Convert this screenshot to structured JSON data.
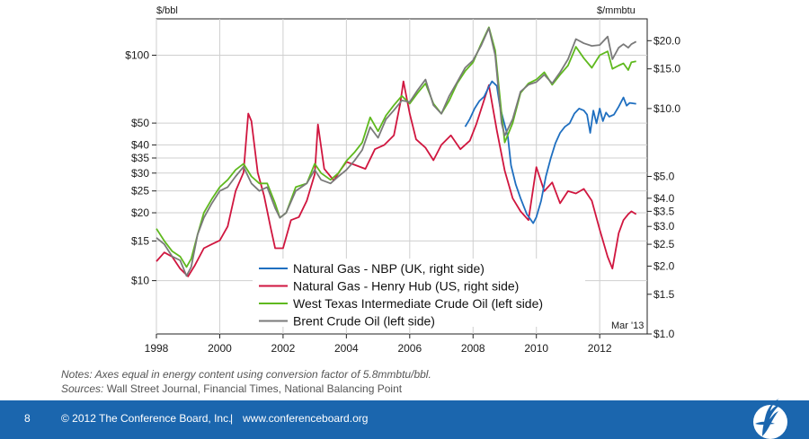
{
  "chart_data": {
    "type": "line",
    "title": "",
    "left_axis_unit": "$/bbl",
    "right_axis_unit": "$/mmbtu",
    "x_ticks": [
      "1998",
      "2000",
      "2002",
      "2004",
      "2006",
      "2008",
      "2010",
      "2012"
    ],
    "xlim": [
      1998,
      2013.5
    ],
    "left_scale": "log",
    "left_ylim": [
      5.8,
      145
    ],
    "left_ticks": [
      {
        "v": 100,
        "label": "$100"
      },
      {
        "v": 50,
        "label": "$50"
      },
      {
        "v": 40,
        "label": "$40"
      },
      {
        "v": 35,
        "label": "$35"
      },
      {
        "v": 30,
        "label": "$30"
      },
      {
        "v": 25,
        "label": "$25"
      },
      {
        "v": 20,
        "label": "$20"
      },
      {
        "v": 15,
        "label": "$15"
      },
      {
        "v": 10,
        "label": "$10"
      }
    ],
    "right_scale": "log",
    "right_ylim": [
      1.0,
      25.0
    ],
    "right_ticks": [
      {
        "v": 20,
        "label": "$20.0"
      },
      {
        "v": 15,
        "label": "$15.0"
      },
      {
        "v": 10,
        "label": "$10.0"
      },
      {
        "v": 5,
        "label": "$5.0"
      },
      {
        "v": 4,
        "label": "$4.0"
      },
      {
        "v": 3.5,
        "label": "$3.5"
      },
      {
        "v": 3,
        "label": "$3.0"
      },
      {
        "v": 2.5,
        "label": "$2.5"
      },
      {
        "v": 2,
        "label": "$2.0"
      },
      {
        "v": 1.5,
        "label": "$1.5"
      },
      {
        "v": 1,
        "label": "$1.0"
      }
    ],
    "date_label": "Mar '13",
    "grid": true,
    "legend_position": "bottom-center",
    "series": [
      {
        "name": "Natural Gas - NBP (UK, right side)",
        "axis": "right",
        "color": "#1f6fc0",
        "points": [
          [
            2007.75,
            8.3
          ],
          [
            2007.9,
            9.0
          ],
          [
            2008.05,
            10.0
          ],
          [
            2008.2,
            10.8
          ],
          [
            2008.35,
            11.3
          ],
          [
            2008.5,
            12.5
          ],
          [
            2008.6,
            13.2
          ],
          [
            2008.75,
            12.6
          ],
          [
            2008.85,
            10.2
          ],
          [
            2008.95,
            9.0
          ],
          [
            2009.1,
            7.5
          ],
          [
            2009.2,
            5.6
          ],
          [
            2009.35,
            4.6
          ],
          [
            2009.5,
            4.0
          ],
          [
            2009.7,
            3.4
          ],
          [
            2009.9,
            3.1
          ],
          [
            2010.0,
            3.3
          ],
          [
            2010.15,
            3.9
          ],
          [
            2010.3,
            5.0
          ],
          [
            2010.45,
            6.0
          ],
          [
            2010.6,
            7.0
          ],
          [
            2010.75,
            7.8
          ],
          [
            2010.9,
            8.3
          ],
          [
            2011.05,
            8.6
          ],
          [
            2011.2,
            9.5
          ],
          [
            2011.35,
            10.0
          ],
          [
            2011.5,
            9.8
          ],
          [
            2011.6,
            9.4
          ],
          [
            2011.7,
            7.8
          ],
          [
            2011.8,
            9.8
          ],
          [
            2011.9,
            8.6
          ],
          [
            2012.0,
            10.0
          ],
          [
            2012.1,
            8.8
          ],
          [
            2012.2,
            9.6
          ],
          [
            2012.3,
            9.2
          ],
          [
            2012.45,
            9.4
          ],
          [
            2012.6,
            10.2
          ],
          [
            2012.75,
            11.2
          ],
          [
            2012.85,
            10.3
          ],
          [
            2012.95,
            10.6
          ],
          [
            2013.15,
            10.5
          ]
        ]
      },
      {
        "name": "Natural Gas - Henry Hub (US, right side)",
        "axis": "right",
        "color": "#d0163f",
        "points": [
          [
            1998.0,
            2.1
          ],
          [
            1998.25,
            2.3
          ],
          [
            1998.5,
            2.2
          ],
          [
            1998.75,
            1.95
          ],
          [
            1999.0,
            1.8
          ],
          [
            1999.2,
            2.0
          ],
          [
            1999.5,
            2.4
          ],
          [
            1999.75,
            2.5
          ],
          [
            2000.0,
            2.6
          ],
          [
            2000.25,
            3.0
          ],
          [
            2000.5,
            4.3
          ],
          [
            2000.75,
            5.2
          ],
          [
            2000.9,
            9.5
          ],
          [
            2001.0,
            8.8
          ],
          [
            2001.2,
            5.2
          ],
          [
            2001.4,
            4.1
          ],
          [
            2001.6,
            3.0
          ],
          [
            2001.75,
            2.4
          ],
          [
            2002.0,
            2.4
          ],
          [
            2002.25,
            3.2
          ],
          [
            2002.5,
            3.3
          ],
          [
            2002.75,
            3.9
          ],
          [
            2003.0,
            5.1
          ],
          [
            2003.1,
            8.5
          ],
          [
            2003.3,
            5.4
          ],
          [
            2003.6,
            4.8
          ],
          [
            2003.8,
            5.3
          ],
          [
            2004.0,
            5.8
          ],
          [
            2004.3,
            5.6
          ],
          [
            2004.6,
            5.4
          ],
          [
            2004.9,
            6.6
          ],
          [
            2005.2,
            6.9
          ],
          [
            2005.5,
            7.6
          ],
          [
            2005.7,
            10.5
          ],
          [
            2005.8,
            13.2
          ],
          [
            2006.0,
            9.5
          ],
          [
            2006.2,
            7.3
          ],
          [
            2006.5,
            6.7
          ],
          [
            2006.75,
            5.9
          ],
          [
            2007.0,
            6.9
          ],
          [
            2007.3,
            7.6
          ],
          [
            2007.6,
            6.6
          ],
          [
            2007.9,
            7.2
          ],
          [
            2008.1,
            8.5
          ],
          [
            2008.5,
            12.7
          ],
          [
            2008.75,
            8.0
          ],
          [
            2009.0,
            5.3
          ],
          [
            2009.25,
            4.0
          ],
          [
            2009.5,
            3.5
          ],
          [
            2009.75,
            3.2
          ],
          [
            2010.0,
            5.5
          ],
          [
            2010.25,
            4.3
          ],
          [
            2010.5,
            4.7
          ],
          [
            2010.75,
            3.8
          ],
          [
            2011.0,
            4.3
          ],
          [
            2011.25,
            4.2
          ],
          [
            2011.5,
            4.4
          ],
          [
            2011.75,
            3.9
          ],
          [
            2012.0,
            2.9
          ],
          [
            2012.25,
            2.2
          ],
          [
            2012.4,
            1.95
          ],
          [
            2012.6,
            2.8
          ],
          [
            2012.75,
            3.2
          ],
          [
            2012.9,
            3.4
          ],
          [
            2013.0,
            3.5
          ],
          [
            2013.15,
            3.4
          ]
        ]
      },
      {
        "name": "West Texas Intermediate Crude Oil (left side)",
        "axis": "left",
        "color": "#5fb91e",
        "points": [
          [
            1998.0,
            17
          ],
          [
            1998.25,
            15
          ],
          [
            1998.5,
            13.5
          ],
          [
            1998.75,
            12.8
          ],
          [
            1998.95,
            11.5
          ],
          [
            1999.1,
            12.5
          ],
          [
            1999.3,
            16
          ],
          [
            1999.5,
            20
          ],
          [
            1999.75,
            23
          ],
          [
            2000.0,
            26
          ],
          [
            2000.25,
            28
          ],
          [
            2000.5,
            31
          ],
          [
            2000.75,
            33
          ],
          [
            2001.0,
            29
          ],
          [
            2001.25,
            27
          ],
          [
            2001.5,
            27
          ],
          [
            2001.75,
            22
          ],
          [
            2001.9,
            19
          ],
          [
            2002.1,
            20
          ],
          [
            2002.4,
            26
          ],
          [
            2002.75,
            27
          ],
          [
            2003.0,
            33
          ],
          [
            2003.2,
            30
          ],
          [
            2003.5,
            28
          ],
          [
            2003.75,
            30
          ],
          [
            2004.0,
            34
          ],
          [
            2004.25,
            37
          ],
          [
            2004.5,
            41
          ],
          [
            2004.75,
            53
          ],
          [
            2005.0,
            46
          ],
          [
            2005.25,
            54
          ],
          [
            2005.5,
            60
          ],
          [
            2005.75,
            66
          ],
          [
            2006.0,
            61
          ],
          [
            2006.25,
            68
          ],
          [
            2006.5,
            75
          ],
          [
            2006.75,
            61
          ],
          [
            2007.0,
            55
          ],
          [
            2007.25,
            63
          ],
          [
            2007.5,
            75
          ],
          [
            2007.75,
            85
          ],
          [
            2008.0,
            93
          ],
          [
            2008.25,
            112
          ],
          [
            2008.5,
            133
          ],
          [
            2008.7,
            105
          ],
          [
            2008.9,
            55
          ],
          [
            2009.0,
            41
          ],
          [
            2009.25,
            50
          ],
          [
            2009.5,
            68
          ],
          [
            2009.75,
            75
          ],
          [
            2010.0,
            78
          ],
          [
            2010.25,
            84
          ],
          [
            2010.5,
            74
          ],
          [
            2010.75,
            82
          ],
          [
            2011.0,
            90
          ],
          [
            2011.25,
            109
          ],
          [
            2011.5,
            97
          ],
          [
            2011.75,
            88
          ],
          [
            2012.0,
            100
          ],
          [
            2012.25,
            104
          ],
          [
            2012.4,
            87
          ],
          [
            2012.6,
            90
          ],
          [
            2012.75,
            92
          ],
          [
            2012.9,
            86
          ],
          [
            2013.0,
            93
          ],
          [
            2013.15,
            94
          ]
        ]
      },
      {
        "name": "Brent Crude Oil (left side)",
        "axis": "left",
        "color": "#7a7a7a",
        "points": [
          [
            1998.0,
            15.5
          ],
          [
            1998.25,
            14.5
          ],
          [
            1998.5,
            12.8
          ],
          [
            1998.75,
            12.3
          ],
          [
            1998.95,
            10.5
          ],
          [
            1999.1,
            11.5
          ],
          [
            1999.3,
            16
          ],
          [
            1999.5,
            19
          ],
          [
            1999.75,
            22
          ],
          [
            2000.0,
            25
          ],
          [
            2000.25,
            26
          ],
          [
            2000.5,
            29
          ],
          [
            2000.75,
            32
          ],
          [
            2001.0,
            27
          ],
          [
            2001.25,
            25
          ],
          [
            2001.5,
            26
          ],
          [
            2001.75,
            21
          ],
          [
            2001.9,
            19
          ],
          [
            2002.1,
            20
          ],
          [
            2002.4,
            25
          ],
          [
            2002.75,
            27
          ],
          [
            2003.0,
            31
          ],
          [
            2003.2,
            28
          ],
          [
            2003.5,
            27
          ],
          [
            2003.75,
            29
          ],
          [
            2004.0,
            31
          ],
          [
            2004.25,
            34
          ],
          [
            2004.5,
            38
          ],
          [
            2004.75,
            48
          ],
          [
            2005.0,
            43
          ],
          [
            2005.25,
            52
          ],
          [
            2005.5,
            57
          ],
          [
            2005.75,
            63
          ],
          [
            2006.0,
            62
          ],
          [
            2006.25,
            70
          ],
          [
            2006.5,
            78
          ],
          [
            2006.75,
            60
          ],
          [
            2007.0,
            55
          ],
          [
            2007.25,
            66
          ],
          [
            2007.5,
            76
          ],
          [
            2007.75,
            88
          ],
          [
            2008.0,
            95
          ],
          [
            2008.25,
            110
          ],
          [
            2008.5,
            132
          ],
          [
            2008.7,
            100
          ],
          [
            2008.9,
            50
          ],
          [
            2009.0,
            44
          ],
          [
            2009.25,
            52
          ],
          [
            2009.5,
            69
          ],
          [
            2009.75,
            74
          ],
          [
            2010.0,
            76
          ],
          [
            2010.25,
            82
          ],
          [
            2010.5,
            75
          ],
          [
            2010.75,
            84
          ],
          [
            2011.0,
            96
          ],
          [
            2011.25,
            118
          ],
          [
            2011.5,
            113
          ],
          [
            2011.75,
            110
          ],
          [
            2012.0,
            111
          ],
          [
            2012.25,
            121
          ],
          [
            2012.4,
            96
          ],
          [
            2012.6,
            108
          ],
          [
            2012.75,
            112
          ],
          [
            2012.9,
            108
          ],
          [
            2013.0,
            112
          ],
          [
            2013.15,
            115
          ]
        ]
      }
    ]
  },
  "notes": {
    "notes_label": "Notes:",
    "notes_text": " Axes equal in energy content using conversion factor of 5.8mmbtu/bbl.",
    "sources_label": "Sources:",
    "sources_text": " Wall Street Journal, Financial Times, National Balancing Point"
  },
  "footer": {
    "page_number": "8",
    "copyright": "© 2012 The Conference Board, Inc.",
    "separator": "|",
    "website": "www.conferenceboard.org"
  }
}
